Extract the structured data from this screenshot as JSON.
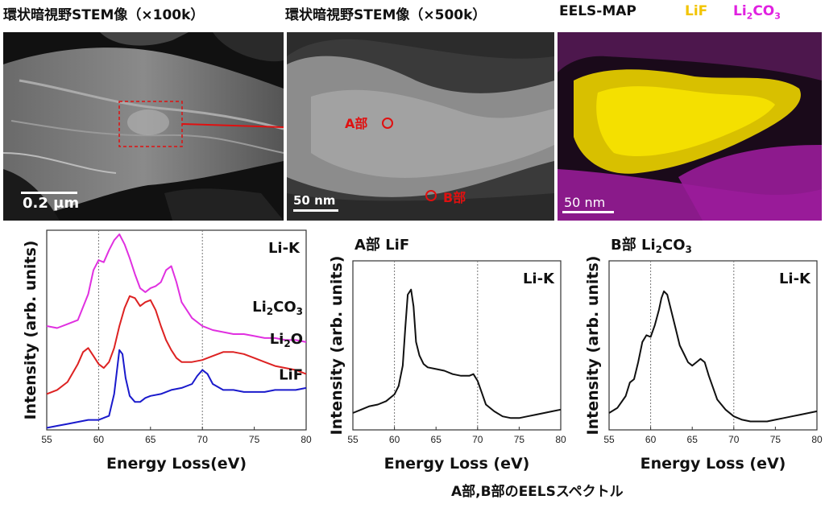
{
  "headers": {
    "panel1": "環状暗視野STEM像（×100k）",
    "panel2": "環状暗視野STEM像（×500k）",
    "panel3": "EELS-MAP",
    "legend_lif": "LiF",
    "legend_li2co3_main": "Li",
    "legend_li2co3_sub1": "2",
    "legend_li2co3_mid": "CO",
    "legend_li2co3_sub2": "3"
  },
  "images": {
    "scale1": "0.2 μm",
    "scale2": "50 nm",
    "scale3": "50 nm",
    "point_a": "A部",
    "point_b": "B部",
    "colors": {
      "lif": "#f2d400",
      "li2co3": "#c000c0"
    }
  },
  "caption": "A部,B部のEELSスペクトル",
  "chart_data": [
    {
      "type": "line",
      "xlabel": "Energy Loss(eV)",
      "ylabel": "Intensity (arb. units)",
      "edge_label": "Li-K",
      "xlim": [
        55,
        80
      ],
      "xticks": [
        55,
        60,
        65,
        70,
        75,
        80
      ],
      "ylim": [
        0,
        1
      ],
      "vlines": [
        60,
        70
      ],
      "series": [
        {
          "name": "Li2CO3",
          "name_main": "Li",
          "name_sub": "2",
          "name_rest": "CO",
          "name_sub2": "3",
          "color": "#e030e0",
          "x": [
            55,
            56,
            57,
            58,
            59,
            59.5,
            60,
            60.5,
            61,
            61.5,
            62,
            62.5,
            63,
            63.5,
            64,
            64.5,
            65,
            65.5,
            66,
            66.5,
            67,
            67.5,
            68,
            69,
            70,
            71,
            72,
            73,
            74,
            75,
            76,
            77,
            78,
            79,
            80
          ],
          "y": [
            0.52,
            0.51,
            0.53,
            0.55,
            0.68,
            0.8,
            0.85,
            0.84,
            0.9,
            0.95,
            0.98,
            0.93,
            0.86,
            0.78,
            0.71,
            0.69,
            0.71,
            0.72,
            0.74,
            0.8,
            0.82,
            0.74,
            0.64,
            0.56,
            0.52,
            0.5,
            0.49,
            0.48,
            0.48,
            0.47,
            0.46,
            0.46,
            0.45,
            0.45,
            0.44
          ]
        },
        {
          "name": "Li2O",
          "name_main": "Li",
          "name_sub": "2",
          "name_rest": "O",
          "color": "#dd2222",
          "x": [
            55,
            56,
            57,
            58,
            58.5,
            59,
            59.5,
            60,
            60.5,
            61,
            61.5,
            62,
            62.5,
            63,
            63.5,
            64,
            64.5,
            65,
            65.5,
            66,
            66.5,
            67,
            67.5,
            68,
            69,
            70,
            71,
            72,
            73,
            74,
            75,
            76,
            77,
            78,
            79,
            80
          ],
          "y": [
            0.18,
            0.2,
            0.24,
            0.33,
            0.39,
            0.41,
            0.37,
            0.33,
            0.31,
            0.34,
            0.41,
            0.52,
            0.61,
            0.67,
            0.66,
            0.62,
            0.64,
            0.65,
            0.6,
            0.52,
            0.45,
            0.4,
            0.36,
            0.34,
            0.34,
            0.35,
            0.37,
            0.39,
            0.39,
            0.38,
            0.36,
            0.34,
            0.32,
            0.31,
            0.3,
            0.28
          ]
        },
        {
          "name": "LiF",
          "name_main": "LiF",
          "color": "#1a1acc",
          "x": [
            55,
            56,
            57,
            58,
            59,
            60,
            60.5,
            61,
            61.5,
            62,
            62.3,
            62.6,
            63,
            63.5,
            64,
            64.5,
            65,
            66,
            67,
            68,
            69,
            69.5,
            70,
            70.5,
            71,
            72,
            73,
            74,
            75,
            76,
            77,
            78,
            79,
            80
          ],
          "y": [
            0.01,
            0.02,
            0.03,
            0.04,
            0.05,
            0.05,
            0.06,
            0.07,
            0.18,
            0.4,
            0.38,
            0.26,
            0.17,
            0.14,
            0.14,
            0.16,
            0.17,
            0.18,
            0.2,
            0.21,
            0.23,
            0.27,
            0.3,
            0.28,
            0.23,
            0.2,
            0.2,
            0.19,
            0.19,
            0.19,
            0.2,
            0.2,
            0.2,
            0.21
          ]
        }
      ]
    },
    {
      "type": "line",
      "title": "A部",
      "title_compound": "LiF",
      "xlabel": "Energy Loss (eV)",
      "ylabel": "Intensity (arb. units)",
      "edge_label": "Li-K",
      "xlim": [
        55,
        80
      ],
      "xticks": [
        55,
        60,
        65,
        70,
        75,
        80
      ],
      "ylim": [
        0,
        1
      ],
      "vlines": [
        60,
        70
      ],
      "series": [
        {
          "color": "#111111",
          "x": [
            55,
            56,
            57,
            58,
            59,
            60,
            60.5,
            61,
            61.3,
            61.6,
            62,
            62.3,
            62.6,
            63,
            63.5,
            64,
            65,
            66,
            67,
            68,
            69,
            69.5,
            70,
            70.5,
            71,
            72,
            73,
            74,
            75,
            76,
            77,
            78,
            79,
            80
          ],
          "y": [
            0.1,
            0.12,
            0.14,
            0.15,
            0.17,
            0.21,
            0.26,
            0.38,
            0.6,
            0.8,
            0.83,
            0.73,
            0.52,
            0.44,
            0.39,
            0.37,
            0.36,
            0.35,
            0.33,
            0.32,
            0.32,
            0.33,
            0.29,
            0.22,
            0.15,
            0.11,
            0.08,
            0.07,
            0.07,
            0.08,
            0.09,
            0.1,
            0.11,
            0.12
          ]
        }
      ]
    },
    {
      "type": "line",
      "title": "B部",
      "title_compound_main": "Li",
      "title_compound_sub": "2",
      "title_compound_rest": "CO",
      "title_compound_sub2": "3",
      "xlabel": "Energy Loss (eV)",
      "ylabel": "Intensity (arb. units)",
      "edge_label": "Li-K",
      "xlim": [
        55,
        80
      ],
      "xticks": [
        55,
        60,
        65,
        70,
        75,
        80
      ],
      "ylim": [
        0,
        1
      ],
      "vlines": [
        60,
        70
      ],
      "series": [
        {
          "color": "#111111",
          "x": [
            55,
            56,
            57,
            57.5,
            58,
            58.5,
            59,
            59.5,
            60,
            60.5,
            61,
            61.3,
            61.6,
            62,
            62.5,
            63,
            63.5,
            64,
            64.5,
            65,
            65.5,
            66,
            66.5,
            67,
            68,
            69,
            70,
            71,
            72,
            73,
            74,
            75,
            76,
            77,
            78,
            79,
            80
          ],
          "y": [
            0.1,
            0.13,
            0.2,
            0.28,
            0.3,
            0.4,
            0.52,
            0.56,
            0.55,
            0.62,
            0.71,
            0.78,
            0.82,
            0.8,
            0.7,
            0.6,
            0.5,
            0.45,
            0.4,
            0.38,
            0.4,
            0.42,
            0.4,
            0.32,
            0.18,
            0.12,
            0.08,
            0.06,
            0.05,
            0.05,
            0.05,
            0.06,
            0.07,
            0.08,
            0.09,
            0.1,
            0.11
          ]
        }
      ]
    }
  ]
}
